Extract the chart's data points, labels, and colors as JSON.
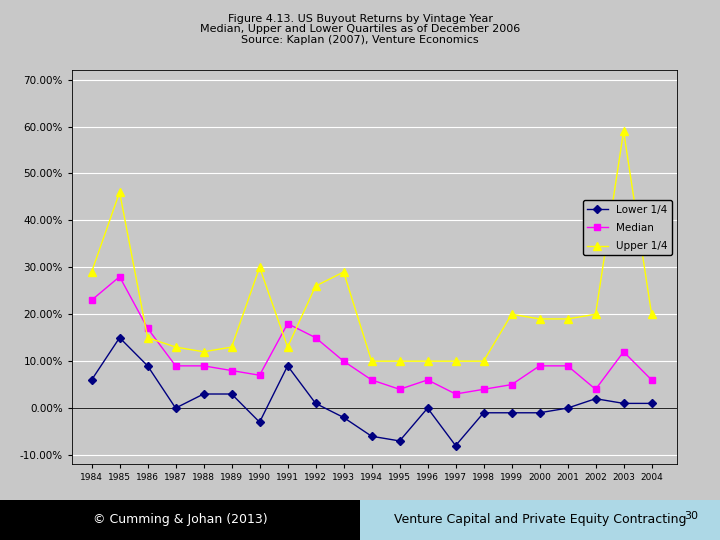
{
  "title_line1": "Figure 4.13. US Buyout Returns by Vintage Year",
  "title_line2": "Median, Upper and Lower Quartiles as of December 2006",
  "title_line3": "Source: Kaplan (2007), Venture Economics",
  "years": [
    1984,
    1985,
    1986,
    1987,
    1988,
    1989,
    1990,
    1991,
    1992,
    1993,
    1994,
    1995,
    1996,
    1997,
    1998,
    1999,
    2000,
    2001,
    2002,
    2003,
    2004
  ],
  "lower_q": [
    0.06,
    0.15,
    0.09,
    0.0,
    0.03,
    0.03,
    -0.03,
    0.09,
    0.01,
    -0.02,
    -0.06,
    -0.07,
    0.0,
    -0.08,
    -0.01,
    -0.01,
    -0.01,
    0.0,
    0.02,
    0.01,
    0.01
  ],
  "median": [
    0.23,
    0.28,
    0.17,
    0.09,
    0.09,
    0.08,
    0.07,
    0.18,
    0.15,
    0.1,
    0.06,
    0.04,
    0.06,
    0.03,
    0.04,
    0.05,
    0.09,
    0.09,
    0.04,
    0.12,
    0.06
  ],
  "upper_q": [
    0.29,
    0.46,
    0.15,
    0.13,
    0.12,
    0.13,
    0.3,
    0.13,
    0.26,
    0.29,
    0.1,
    0.1,
    0.1,
    0.1,
    0.1,
    0.2,
    0.19,
    0.19,
    0.2,
    0.59,
    0.2
  ],
  "lower_q_color": "#000080",
  "median_color": "#FF00FF",
  "upper_q_color": "#FFFF00",
  "bg_color": "#C8C8C8",
  "plot_bg_color": "#C8C8C8",
  "ylim": [
    -0.12,
    0.72
  ],
  "yticks": [
    -0.1,
    0.0,
    0.1,
    0.2,
    0.3,
    0.4,
    0.5,
    0.6,
    0.7
  ],
  "legend_labels": [
    "Lower 1/4",
    "Median",
    "Upper 1/4"
  ],
  "footer_left": "© Cumming & Johan (2013)",
  "footer_right": "Venture Capital and Private Equity Contracting",
  "page_number": "30",
  "footer_left_bg": "#000000",
  "footer_right_bg": "#ADD8E6",
  "footer_text_left_color": "#FFFFFF",
  "footer_text_right_color": "#000000"
}
